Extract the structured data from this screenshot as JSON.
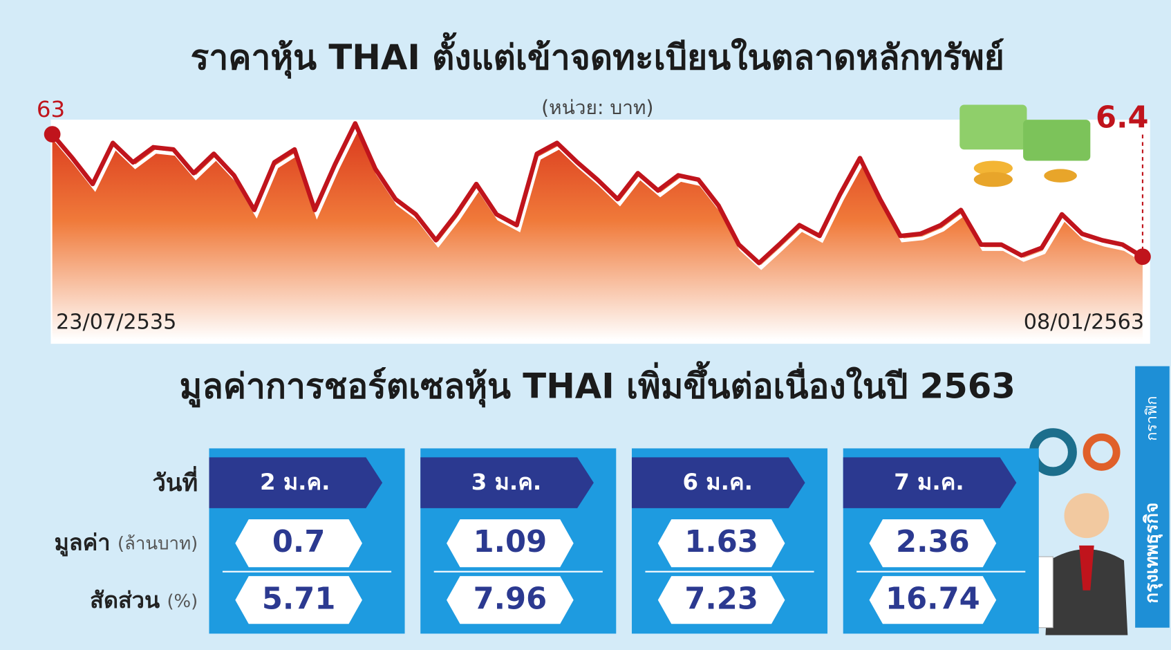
{
  "chart_data": {
    "type": "area",
    "title": "ราคาหุ้น THAI ตั้งแต่เข้าจดทะเบียนในตลาดหลักทรัพย์",
    "subtitle": "(หน่วย: บาท)",
    "color": "#c0141c",
    "categories": [
      "23/07/2535",
      null,
      null,
      null,
      null,
      null,
      null,
      null,
      null,
      null,
      null,
      null,
      null,
      null,
      null,
      null,
      null,
      null,
      null,
      null,
      null,
      null,
      null,
      null,
      null,
      null,
      null,
      null,
      null,
      null,
      null,
      null,
      null,
      null,
      null,
      null,
      null,
      null,
      null,
      null,
      null,
      null,
      null,
      null,
      null,
      null,
      null,
      null,
      null,
      null,
      null,
      null,
      null,
      null,
      "08/01/2563"
    ],
    "values": [
      63,
      52,
      40,
      59,
      50,
      57,
      56,
      45,
      54,
      44,
      28,
      50,
      56,
      28,
      49,
      68,
      47,
      33,
      26,
      14,
      26,
      40,
      26,
      21,
      54,
      59,
      50,
      42,
      33,
      45,
      37,
      44,
      42,
      30,
      12,
      3.5,
      12,
      21,
      16,
      35,
      52,
      33,
      16,
      17,
      21,
      28,
      12,
      12,
      7,
      10.5,
      26,
      17,
      14,
      12,
      6.4
    ]
  },
  "table": {
    "title": "มูลค่าการชอร์ตเซลหุ้น THAI เพิ่มขึ้นต่อเนื่องในปี 2563",
    "row_labels": {
      "date": "วันที่",
      "value": "มูลค่า",
      "value_unit": "(ล้านบาท)",
      "share": "สัดส่วน",
      "share_unit": "(%)"
    },
    "columns": [
      {
        "date": "2 ม.ค.",
        "value": 0.7,
        "share": 5.71
      },
      {
        "date": "3 ม.ค.",
        "value": 1.09,
        "share": 7.96
      },
      {
        "date": "6 ม.ค.",
        "value": 1.63,
        "share": 7.23
      },
      {
        "date": "7 ม.ค.",
        "value": 2.36,
        "share": 16.74
      }
    ]
  },
  "credit": [
    "กรุงเทพธุรกิจ",
    "กราฟิก"
  ]
}
